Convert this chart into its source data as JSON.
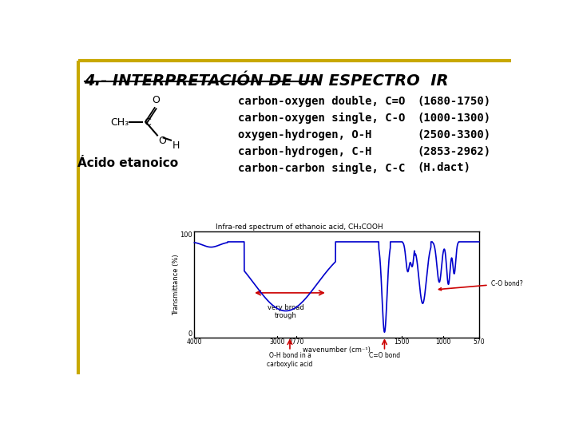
{
  "title": "4.- INTERPRETACIÓN DE UN ESPECTRO  IR",
  "title_color": "#000000",
  "background_color": "#ffffff",
  "molecule_label": "Ácido etanoico",
  "bonds": [
    {
      "label": "carbon-oxygen double, C=O",
      "range": "(1680-1750)"
    },
    {
      "label": "carbon-oxygen single, C-O",
      "range": "(1000-1300)"
    },
    {
      "label": "oxygen-hydrogen, O-H",
      "range": "(2500-3300)"
    },
    {
      "label": "carbon-hydrogen, C-H",
      "range": "(2853-2962)"
    },
    {
      "label": "carbon-carbon single, C-C",
      "range": "(H.dact)"
    }
  ],
  "spectrum_title": "Infra-red spectrum of ethanoic acid, CH₃COOH",
  "border_color": "#C8A800"
}
